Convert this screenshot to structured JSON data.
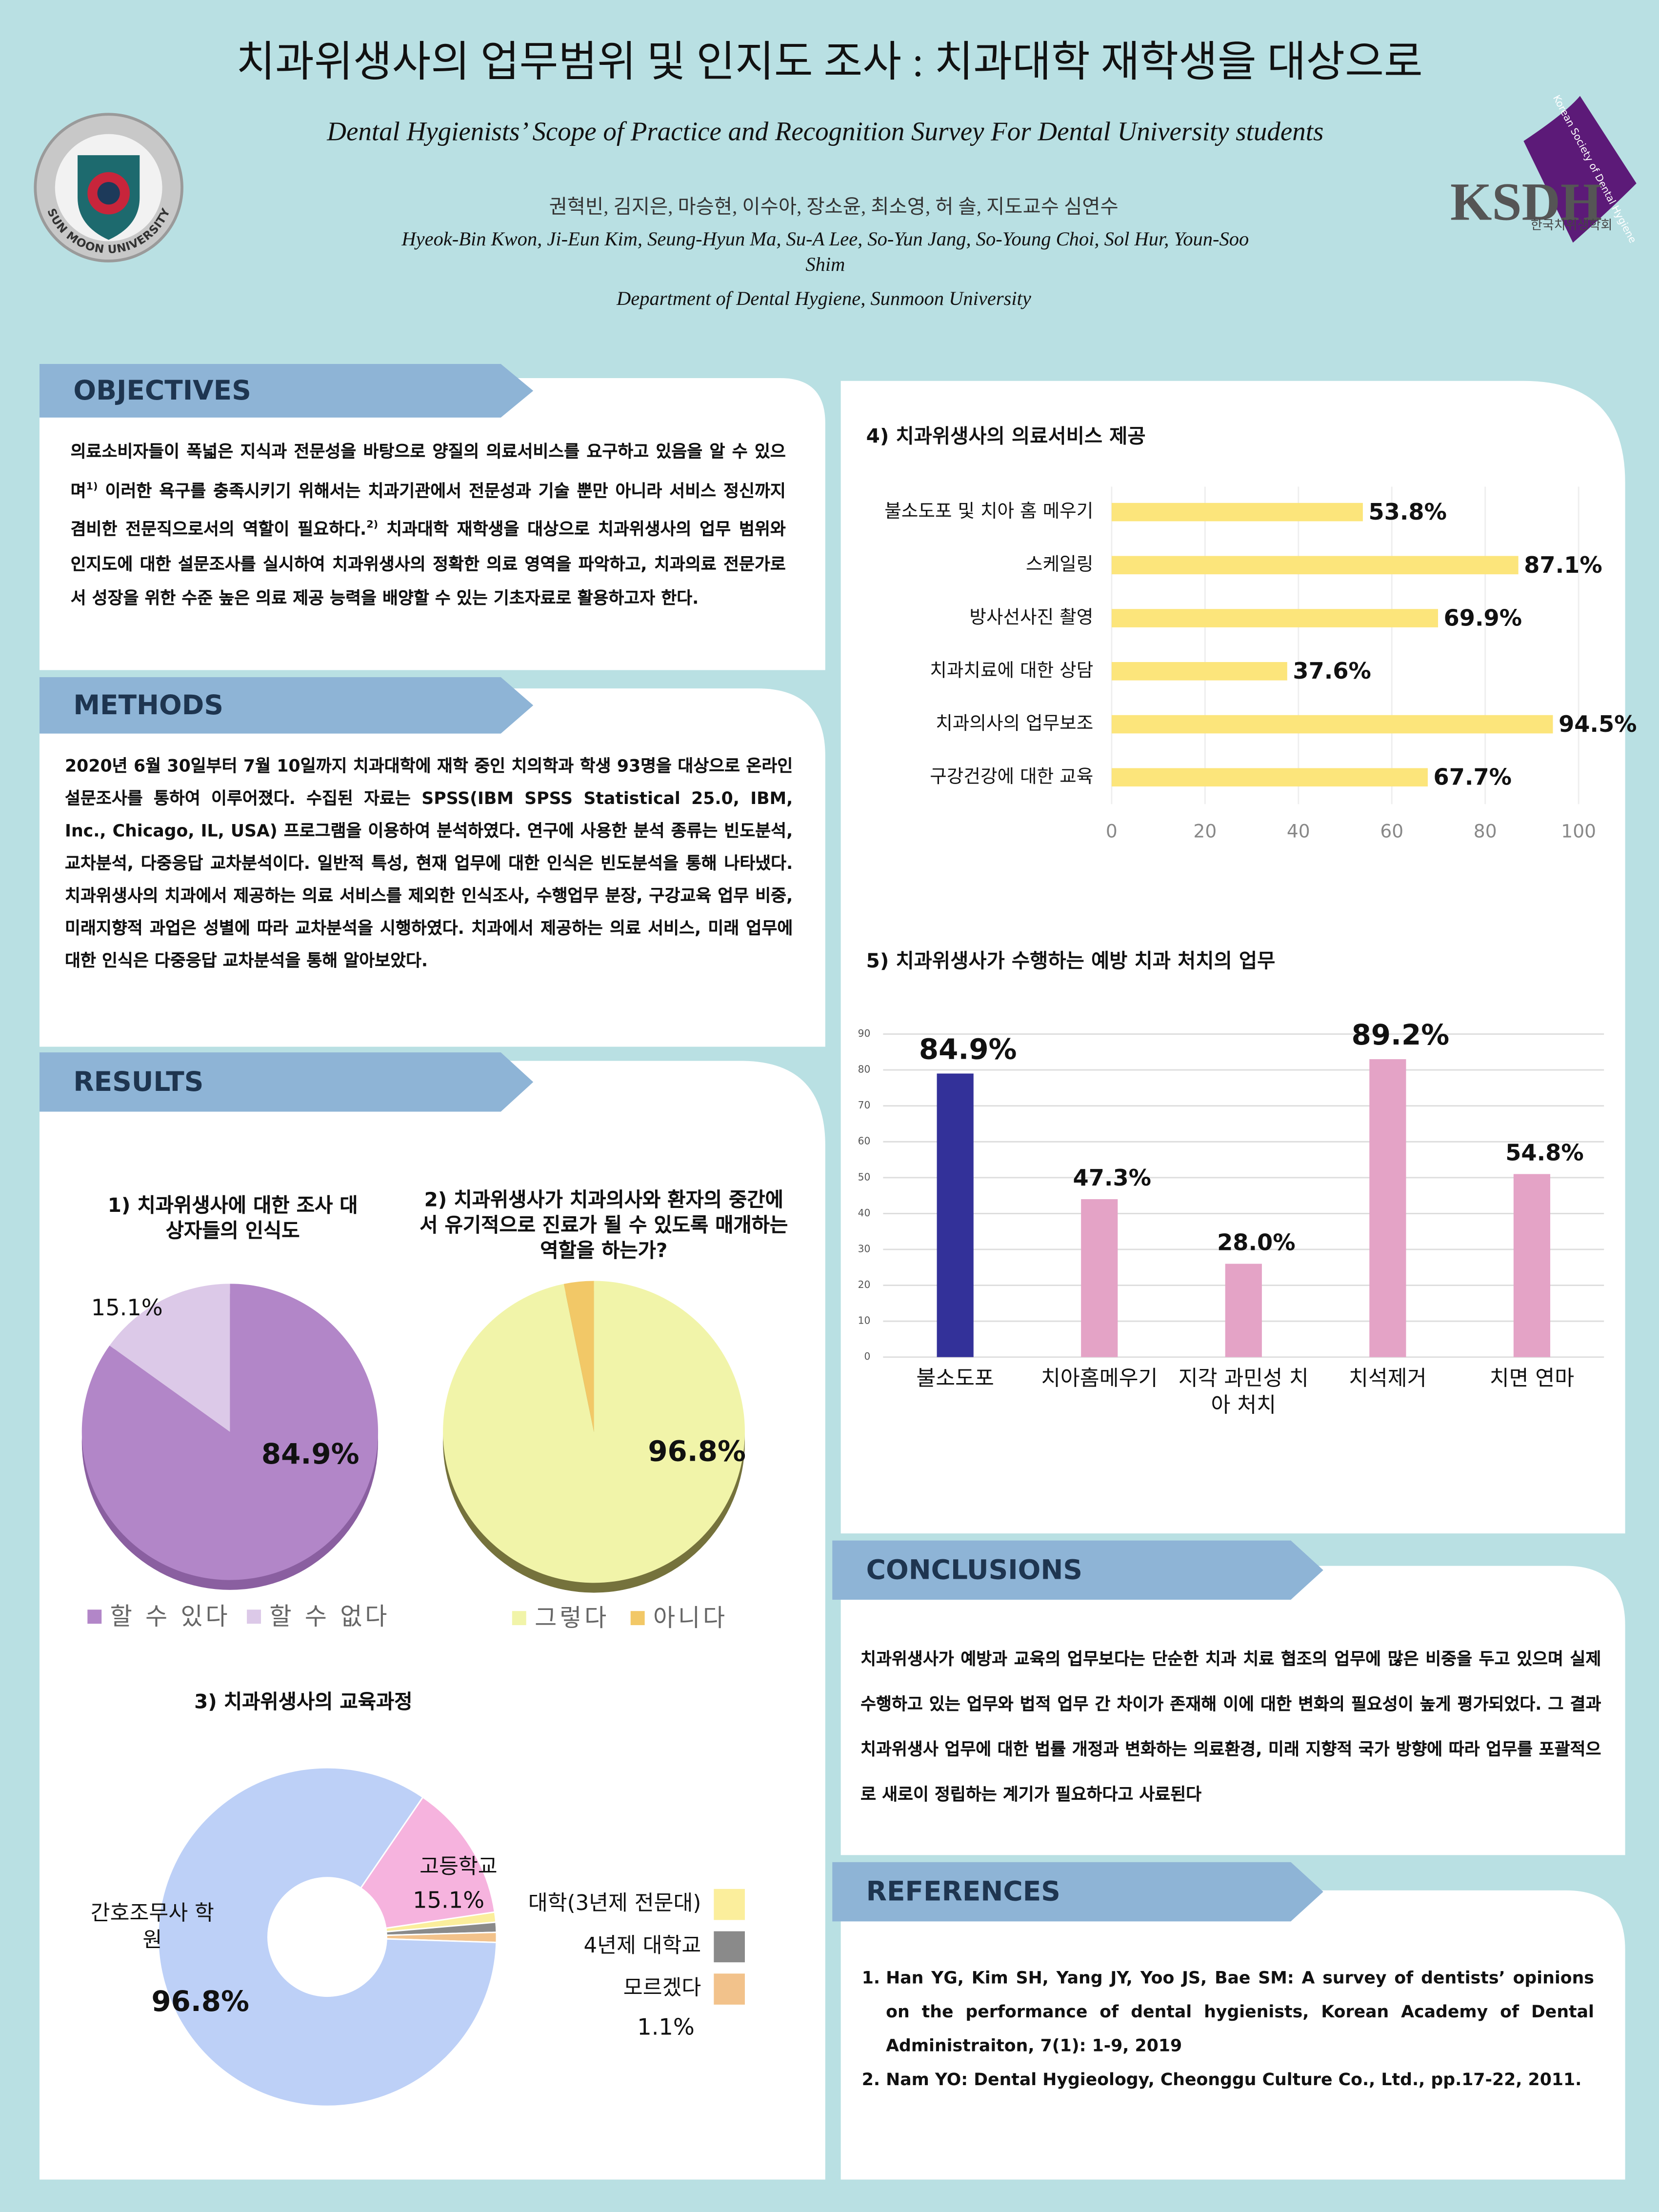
{
  "header": {
    "title": "치과위생사의 업무범위 및 인지도 조사 : 치과대학 재학생을 대상으로",
    "subtitle": "Dental Hygienists’ Scope of Practice and Recognition Survey For Dental University students",
    "authors_ko": "권혁빈, 김지은, 마승현, 이수아, 장소윤, 최소영, 허 솔, 지도교수 심연수",
    "authors_en": "Hyeok-Bin Kwon, Ji-Eun Kim, Seung-Hyun Ma, Su-A Lee, So-Yun Jang, So-Young Choi, Sol Hur, Youn-Soo Shim",
    "department": "Department of Dental Hygiene, Sunmoon University",
    "logo_left": "SUN MOON UNIVERSITY",
    "logo_right": {
      "mark": "KSDH",
      "name_ko": "한국치위생학회",
      "name_en": "Korean Society of Dental Hygiene"
    }
  },
  "objectives": {
    "heading": "OBJECTIVES",
    "text": [
      "의료소비자들이 폭넓은 지식과 전문성을 바탕으로 양질의 의료서비스를 요구하고 있음을 알 수 있으며",
      "1)",
      " 이러한 욕구를 충족시키기 위해서는 치과기관에서 전문성과 기술 뿐만 아니라 서비스 정신까지 겸비한 전문직으로서의 역할이 필요하다.",
      "2)",
      " 치과대학 재학생을 대상으로 치과위생사의 업무 범위와 인지도에 대한 설문조사를 실시하여 치과위생사의 정확한 의료 영역을 파악하고, 치과의료 전문가로서 성장을 위한 수준 높은 의료 제공 능력을 배양할 수 있는 기초자료로 활용하고자 한다."
    ]
  },
  "methods": {
    "heading": "METHODS",
    "text": "2020년 6월 30일부터 7월 10일까지 치과대학에 재학 중인 치의학과 학생 93명을 대상으로 온라인 설문조사를 통하여 이루어졌다. 수집된 자료는 SPSS(IBM SPSS Statistical 25.0, IBM, Inc., Chicago, IL, USA) 프로그램을 이용하여 분석하였다. 연구에 사용한 분석 종류는 빈도분석, 교차분석, 다중응답 교차분석이다. 일반적 특성, 현재 업무에 대한 인식은 빈도분석을 통해 나타냈다. 치과위생사의 치과에서 제공하는 의료 서비스를 제외한 인식조사, 수행업무 분장, 구강교육 업무 비중, 미래지향적 과업은 성별에 따라 교차분석을 시행하였다. 치과에서 제공하는 의료 서비스, 미래 업무에 대한 인식은 다중응답 교차분석을 통해 알아보았다."
  },
  "results": {
    "heading": "RESULTS"
  },
  "chart_data": [
    {
      "type": "pie",
      "title": "1) 치과위생사에 대한 조사 대상자들의 인식도",
      "categories": [
        "할 수 있다",
        "할 수 없다"
      ],
      "values": [
        84.9,
        15.1
      ],
      "value_labels": [
        "84.9%",
        "15.1%"
      ],
      "colors": [
        "#b286c8",
        "#dcc9e8"
      ]
    },
    {
      "type": "pie",
      "title": "2) 치과위생사가 치과의사와 환자의 중간에서 유기적으로 진료가 될 수 있도록 매개하는 역할을 하는가?",
      "categories": [
        "그렇다",
        "아니다"
      ],
      "values": [
        96.8,
        3.2
      ],
      "value_labels": [
        "96.8%",
        null
      ],
      "colors": [
        "#f1f4a9",
        "#f2c867"
      ]
    },
    {
      "type": "donut",
      "title": "3) 치과위생사의 교육과정",
      "categories": [
        "고등학교",
        "대학(3년제 전문대)",
        "4년제 대학교",
        "모르겠다",
        "간호조무사 학원"
      ],
      "values": [
        15.1,
        1.1,
        1.1,
        1.1,
        96.8
      ],
      "value_labels": [
        "15.1%",
        null,
        null,
        "1.1%",
        "96.8%"
      ],
      "colors": [
        "#f6b3de",
        "#fbee9c",
        "#8a8a8a",
        "#f2c28b",
        "#bdd0f7"
      ]
    },
    {
      "type": "hbar",
      "title": "4) 치과위생사의 의료서비스 제공",
      "categories": [
        "불소도포 및 치아 홈 메우기",
        "스케일링",
        "방사선사진 촬영",
        "치과치료에 대한 상담",
        "치과의사의 업무보조",
        "구강건강에 대한 교육"
      ],
      "values": [
        53.8,
        87.1,
        69.9,
        37.6,
        94.5,
        67.7
      ],
      "value_labels": [
        "53.8%",
        "87.1%",
        "69.9%",
        "37.6%",
        "94.5%",
        "67.7%"
      ],
      "color": "#fce57b",
      "xlim": [
        0,
        100
      ],
      "xticks": [
        0,
        20,
        40,
        60,
        80,
        100
      ],
      "grid": true
    },
    {
      "type": "vbar",
      "title": "5) 치과위생사가 수행하는 예방 치과 처치의 업무",
      "categories": [
        "불소도포",
        "치아홈메우기",
        "지각 과민성 치아 처치",
        "치석제거",
        "치면 연마"
      ],
      "values": [
        79,
        44,
        26,
        83,
        51
      ],
      "value_labels": [
        "84.9%",
        "47.3%",
        "28.0%",
        "89.2%",
        "54.8%"
      ],
      "colors": [
        "#333199",
        "#e4a3c6",
        "#e4a3c6",
        "#e4a3c6",
        "#e4a3c6"
      ],
      "ylim": [
        0,
        90
      ],
      "yticks": [
        0,
        10,
        20,
        30,
        40,
        50,
        60,
        70,
        80,
        90
      ],
      "grid": true
    }
  ],
  "conclusions": {
    "heading": "CONCLUSIONS",
    "text": "치과위생사가 예방과 교육의 업무보다는 단순한 치과 치료 협조의 업무에 많은 비중을 두고 있으며 실제 수행하고 있는 업무와 법적 업무 간 차이가 존재해 이에 대한 변화의 필요성이 높게 평가되었다. 그 결과 치과위생사 업무에 대한 법률 개정과 변화하는 의료환경, 미래 지향적 국가 방향에 따라 업무를 포괄적으로 새로이 정립하는 계기가 필요하다고 사료된다"
  },
  "references": {
    "heading": "REFERENCES",
    "items": [
      "Han YG, Kim SH, Yang JY, Yoo JS, Bae SM: A survey of dentists’ opinions on the performance of dental hygienists, Korean Academy of Dental Administraiton, 7(1): 1-9, 2019",
      "Nam YO: Dental Hygieology, Cheonggu Culture Co., Ltd., pp.17-22, 2011."
    ]
  }
}
